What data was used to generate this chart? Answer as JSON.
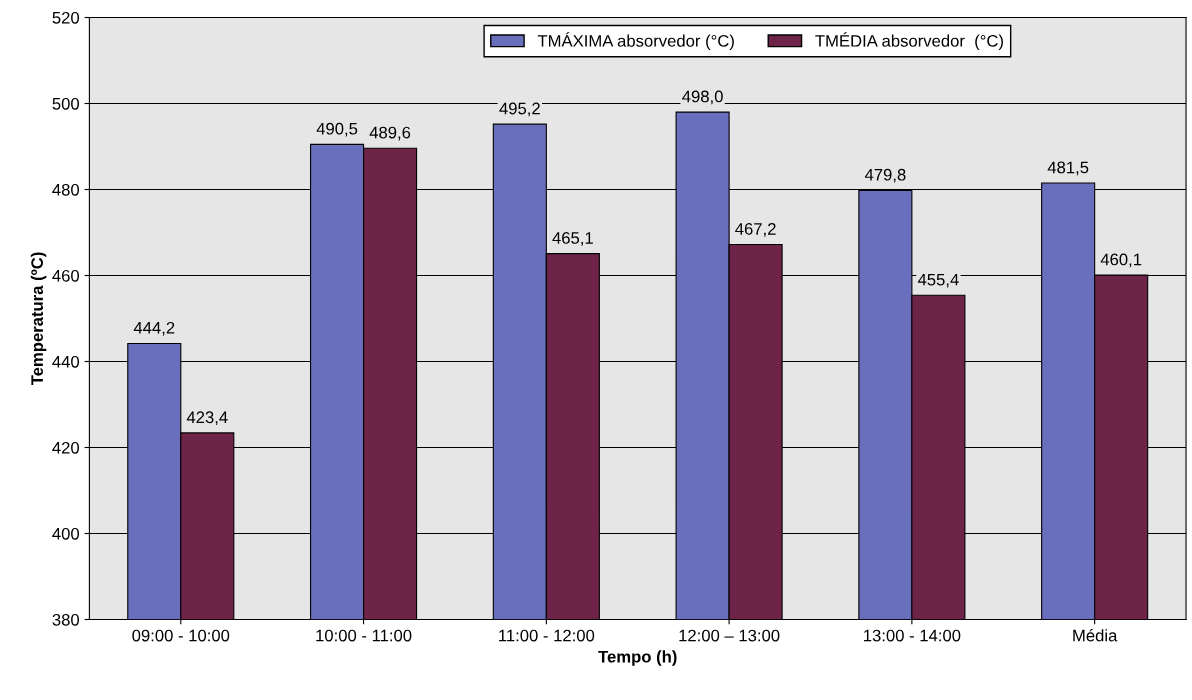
{
  "chart_data": {
    "type": "bar",
    "xlabel": "Tempo (h)",
    "ylabel": "Temperatura (ºC)",
    "categories": [
      "09:00 - 10:00",
      "10:00 - 11:00",
      "11:00 - 12:00",
      "12:00 – 13:00",
      "13:00 - 14:00",
      "Média"
    ],
    "series": [
      {
        "name": "TMÁXIMA absorvedor (°C)",
        "color": "#6a6fbd",
        "values": [
          444.2,
          490.5,
          495.2,
          498.0,
          479.8,
          481.5
        ],
        "value_labels": [
          "444,2",
          "490,5",
          "495,2",
          "498,0",
          "479,8",
          "481,5"
        ]
      },
      {
        "name": "TMÉDIA absorvedor  (°C)",
        "color": "#6e2449",
        "values": [
          423.4,
          489.6,
          465.1,
          467.2,
          455.4,
          460.1
        ],
        "value_labels": [
          "423,4",
          "489,6",
          "465,1",
          "467,2",
          "455,4",
          "460,1"
        ]
      }
    ],
    "ylim": [
      380,
      520
    ],
    "yticks": [
      380,
      400,
      420,
      440,
      460,
      480,
      500,
      520
    ],
    "grid": "y",
    "legend": "top right"
  }
}
